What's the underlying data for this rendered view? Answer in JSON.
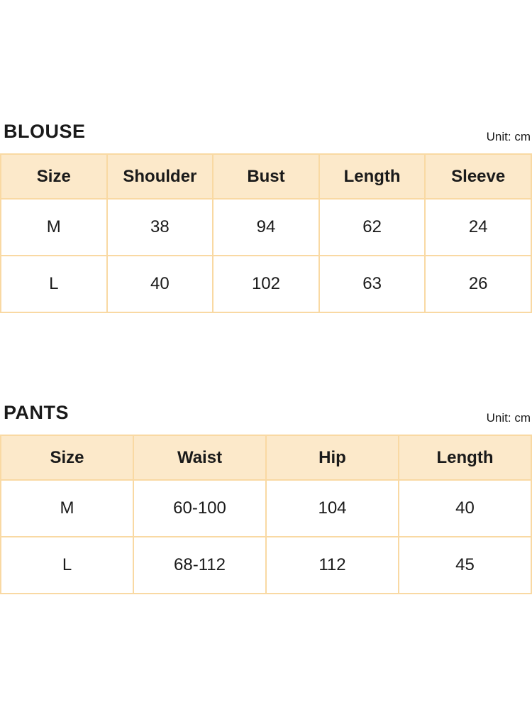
{
  "colors": {
    "header_bg": "#fce9ca",
    "border": "#f9d9a3",
    "text": "#1a1a1a",
    "page_bg": "#ffffff"
  },
  "tables": [
    {
      "title": "BLOUSE",
      "unit_label": "Unit: cm",
      "columns": [
        "Size",
        "Shoulder",
        "Bust",
        "Length",
        "Sleeve"
      ],
      "rows": [
        [
          "M",
          "38",
          "94",
          "62",
          "24"
        ],
        [
          "L",
          "40",
          "102",
          "63",
          "26"
        ]
      ]
    },
    {
      "title": "PANTS",
      "unit_label": "Unit: cm",
      "columns": [
        "Size",
        "Waist",
        "Hip",
        "Length"
      ],
      "rows": [
        [
          "M",
          "60-100",
          "104",
          "40"
        ],
        [
          "L",
          "68-112",
          "112",
          "45"
        ]
      ]
    }
  ]
}
